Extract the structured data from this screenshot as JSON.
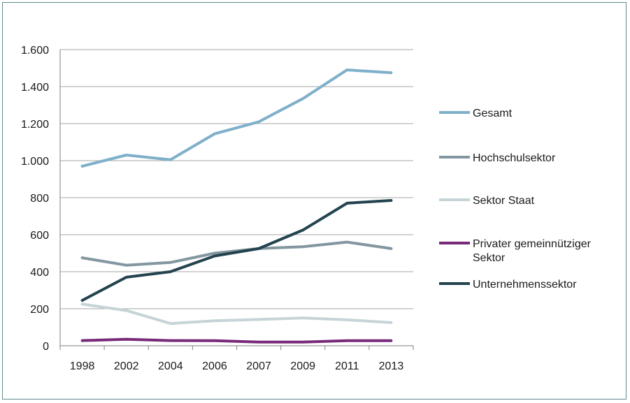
{
  "chart_data": {
    "type": "line",
    "title": "",
    "xlabel": "",
    "ylabel": "",
    "categories": [
      "1998",
      "2002",
      "2004",
      "2006",
      "2007",
      "2009",
      "2011",
      "2013"
    ],
    "ylim": [
      0,
      1600
    ],
    "yticks": [
      0,
      200,
      400,
      600,
      800,
      1000,
      1200,
      1400,
      1600
    ],
    "ytick_labels": [
      "0",
      "200",
      "400",
      "600",
      "800",
      "1.000",
      "1.200",
      "1.400",
      "1.600"
    ],
    "grid": "horizontal",
    "legend_position": "right",
    "series": [
      {
        "name": "Gesamt",
        "color": "#7fb0c9",
        "values": [
          970,
          1030,
          1005,
          1145,
          1210,
          1335,
          1490,
          1475
        ]
      },
      {
        "name": "Hochschulsektor",
        "color": "#8397a1",
        "values": [
          475,
          435,
          450,
          500,
          525,
          535,
          560,
          525
        ]
      },
      {
        "name": "Sektor Staat",
        "color": "#c6d4d7",
        "values": [
          225,
          190,
          120,
          135,
          142,
          150,
          140,
          125
        ]
      },
      {
        "name": "Privater gemeinnütziger Sektor",
        "legend_lines": [
          "Privater gemeinnütziger",
          "Sektor"
        ],
        "color": "#782a7a",
        "values": [
          28,
          35,
          28,
          27,
          20,
          20,
          27,
          27
        ]
      },
      {
        "name": "Unternehmenssektor",
        "color": "#23434f",
        "values": [
          245,
          370,
          400,
          485,
          525,
          625,
          770,
          785
        ]
      }
    ]
  }
}
